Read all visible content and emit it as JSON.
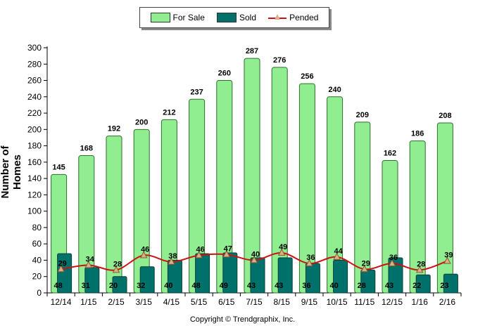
{
  "chart_data": {
    "type": "bar",
    "categories": [
      "12/14",
      "1/15",
      "2/15",
      "3/15",
      "4/15",
      "5/15",
      "6/15",
      "7/15",
      "8/15",
      "9/15",
      "10/15",
      "11/15",
      "12/15",
      "1/16",
      "2/16"
    ],
    "series": [
      {
        "name": "For Sale",
        "type": "bar",
        "color": "#90ee90",
        "values": [
          145,
          168,
          192,
          200,
          212,
          237,
          260,
          287,
          276,
          256,
          240,
          209,
          162,
          186,
          208
        ]
      },
      {
        "name": "Sold",
        "type": "bar",
        "color": "#00706b",
        "values": [
          48,
          31,
          20,
          32,
          40,
          48,
          49,
          43,
          43,
          36,
          40,
          28,
          43,
          22,
          23
        ]
      },
      {
        "name": "Pended",
        "type": "line",
        "color": "#cc1111",
        "values": [
          29,
          34,
          28,
          46,
          38,
          46,
          47,
          40,
          49,
          36,
          44,
          29,
          36,
          28,
          39
        ]
      }
    ],
    "ylabel": "Number of Homes",
    "xlabel": "",
    "ylim": [
      0,
      300
    ],
    "yticks": [
      0,
      20,
      40,
      60,
      80,
      100,
      120,
      140,
      160,
      180,
      200,
      220,
      240,
      260,
      280,
      300
    ],
    "legend_position": "top-center",
    "grid": false
  },
  "legend": {
    "for_sale": "For Sale",
    "sold": "Sold",
    "pended": "Pended"
  },
  "copyright": "Copyright © Trendgraphix, Inc."
}
